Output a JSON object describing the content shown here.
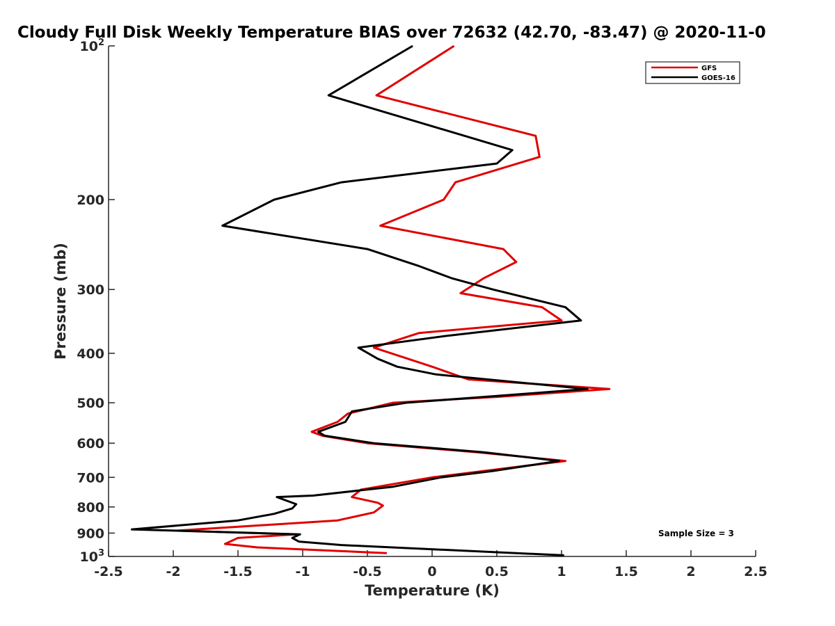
{
  "chart_data": {
    "type": "line",
    "title": "Cloudy Full Disk Weekly Temperature BIAS over 72632 (42.70, -83.47) @ 2020-11-0",
    "xlabel": "Temperature (K)",
    "ylabel": "Pressure (mb)",
    "xlim": [
      -2.5,
      2.5
    ],
    "ylim": [
      100,
      1000
    ],
    "y_scale": "log",
    "y_reversed": true,
    "x_ticks": [
      "-2.5",
      "-2",
      "-1.5",
      "-1",
      "-0.5",
      "0",
      "0.5",
      "1",
      "1.5",
      "2",
      "2.5"
    ],
    "x_tick_values": [
      -2.5,
      -2,
      -1.5,
      -1,
      -0.5,
      0,
      0.5,
      1,
      1.5,
      2,
      2.5
    ],
    "y_ticks": [
      {
        "value": 100,
        "base": "10",
        "exp": "2"
      },
      {
        "value": 200,
        "label": "200"
      },
      {
        "value": 300,
        "label": "300"
      },
      {
        "value": 400,
        "label": "400"
      },
      {
        "value": 500,
        "label": "500"
      },
      {
        "value": 600,
        "label": "600"
      },
      {
        "value": 700,
        "label": "700"
      },
      {
        "value": 800,
        "label": "800"
      },
      {
        "value": 900,
        "label": "900"
      },
      {
        "value": 1000,
        "base": "10",
        "exp": "3"
      }
    ],
    "legend_position": "top-right",
    "grid": false,
    "series": [
      {
        "name": "GFS",
        "color": "#e00000",
        "points": [
          [
            0.17,
            100
          ],
          [
            -0.43,
            125
          ],
          [
            0.8,
            150
          ],
          [
            0.83,
            165
          ],
          [
            0.18,
            185
          ],
          [
            0.09,
            200
          ],
          [
            -0.4,
            225
          ],
          [
            0.55,
            250
          ],
          [
            0.65,
            265
          ],
          [
            0.4,
            285
          ],
          [
            0.22,
            305
          ],
          [
            0.85,
            325
          ],
          [
            1.0,
            345
          ],
          [
            -0.1,
            365
          ],
          [
            -0.45,
            390
          ],
          [
            0.0,
            425
          ],
          [
            0.28,
            450
          ],
          [
            1.37,
            470
          ],
          [
            0.5,
            487
          ],
          [
            -0.3,
            500
          ],
          [
            -0.65,
            525
          ],
          [
            -0.73,
            545
          ],
          [
            -0.93,
            570
          ],
          [
            -0.85,
            580
          ],
          [
            -0.5,
            600
          ],
          [
            0.35,
            625
          ],
          [
            1.03,
            650
          ],
          [
            0.0,
            700
          ],
          [
            -0.55,
            740
          ],
          [
            -0.62,
            765
          ],
          [
            -0.42,
            785
          ],
          [
            -0.38,
            795
          ],
          [
            -0.45,
            820
          ],
          [
            -0.73,
            850
          ],
          [
            -1.97,
            890
          ],
          [
            -1.05,
            905
          ],
          [
            -1.5,
            920
          ],
          [
            -1.6,
            945
          ],
          [
            -1.35,
            960
          ],
          [
            -0.35,
            985
          ]
        ]
      },
      {
        "name": "GOES-16",
        "color": "#000000",
        "points": [
          [
            -0.15,
            100
          ],
          [
            -0.8,
            125
          ],
          [
            0.62,
            160
          ],
          [
            0.5,
            170
          ],
          [
            -0.7,
            185
          ],
          [
            -1.22,
            200
          ],
          [
            -1.62,
            225
          ],
          [
            -0.5,
            250
          ],
          [
            -0.1,
            270
          ],
          [
            0.15,
            285
          ],
          [
            0.47,
            300
          ],
          [
            1.03,
            325
          ],
          [
            1.15,
            345
          ],
          [
            0.1,
            370
          ],
          [
            -0.57,
            390
          ],
          [
            -0.42,
            410
          ],
          [
            -0.27,
            425
          ],
          [
            0.03,
            440
          ],
          [
            1.2,
            470
          ],
          [
            0.5,
            485
          ],
          [
            -0.2,
            500
          ],
          [
            -0.62,
            520
          ],
          [
            -0.67,
            545
          ],
          [
            -0.88,
            570
          ],
          [
            -0.83,
            580
          ],
          [
            -0.45,
            600
          ],
          [
            0.4,
            625
          ],
          [
            0.98,
            650
          ],
          [
            0.47,
            680
          ],
          [
            0.07,
            700
          ],
          [
            -0.3,
            730
          ],
          [
            -0.92,
            760
          ],
          [
            -1.2,
            765
          ],
          [
            -1.05,
            790
          ],
          [
            -1.08,
            805
          ],
          [
            -1.22,
            825
          ],
          [
            -1.5,
            850
          ],
          [
            -2.32,
            885
          ],
          [
            -1.02,
            905
          ],
          [
            -1.08,
            920
          ],
          [
            -1.03,
            935
          ],
          [
            -0.7,
            950
          ],
          [
            1.02,
            995
          ]
        ]
      }
    ],
    "annotation": "Sample Size = 3"
  }
}
